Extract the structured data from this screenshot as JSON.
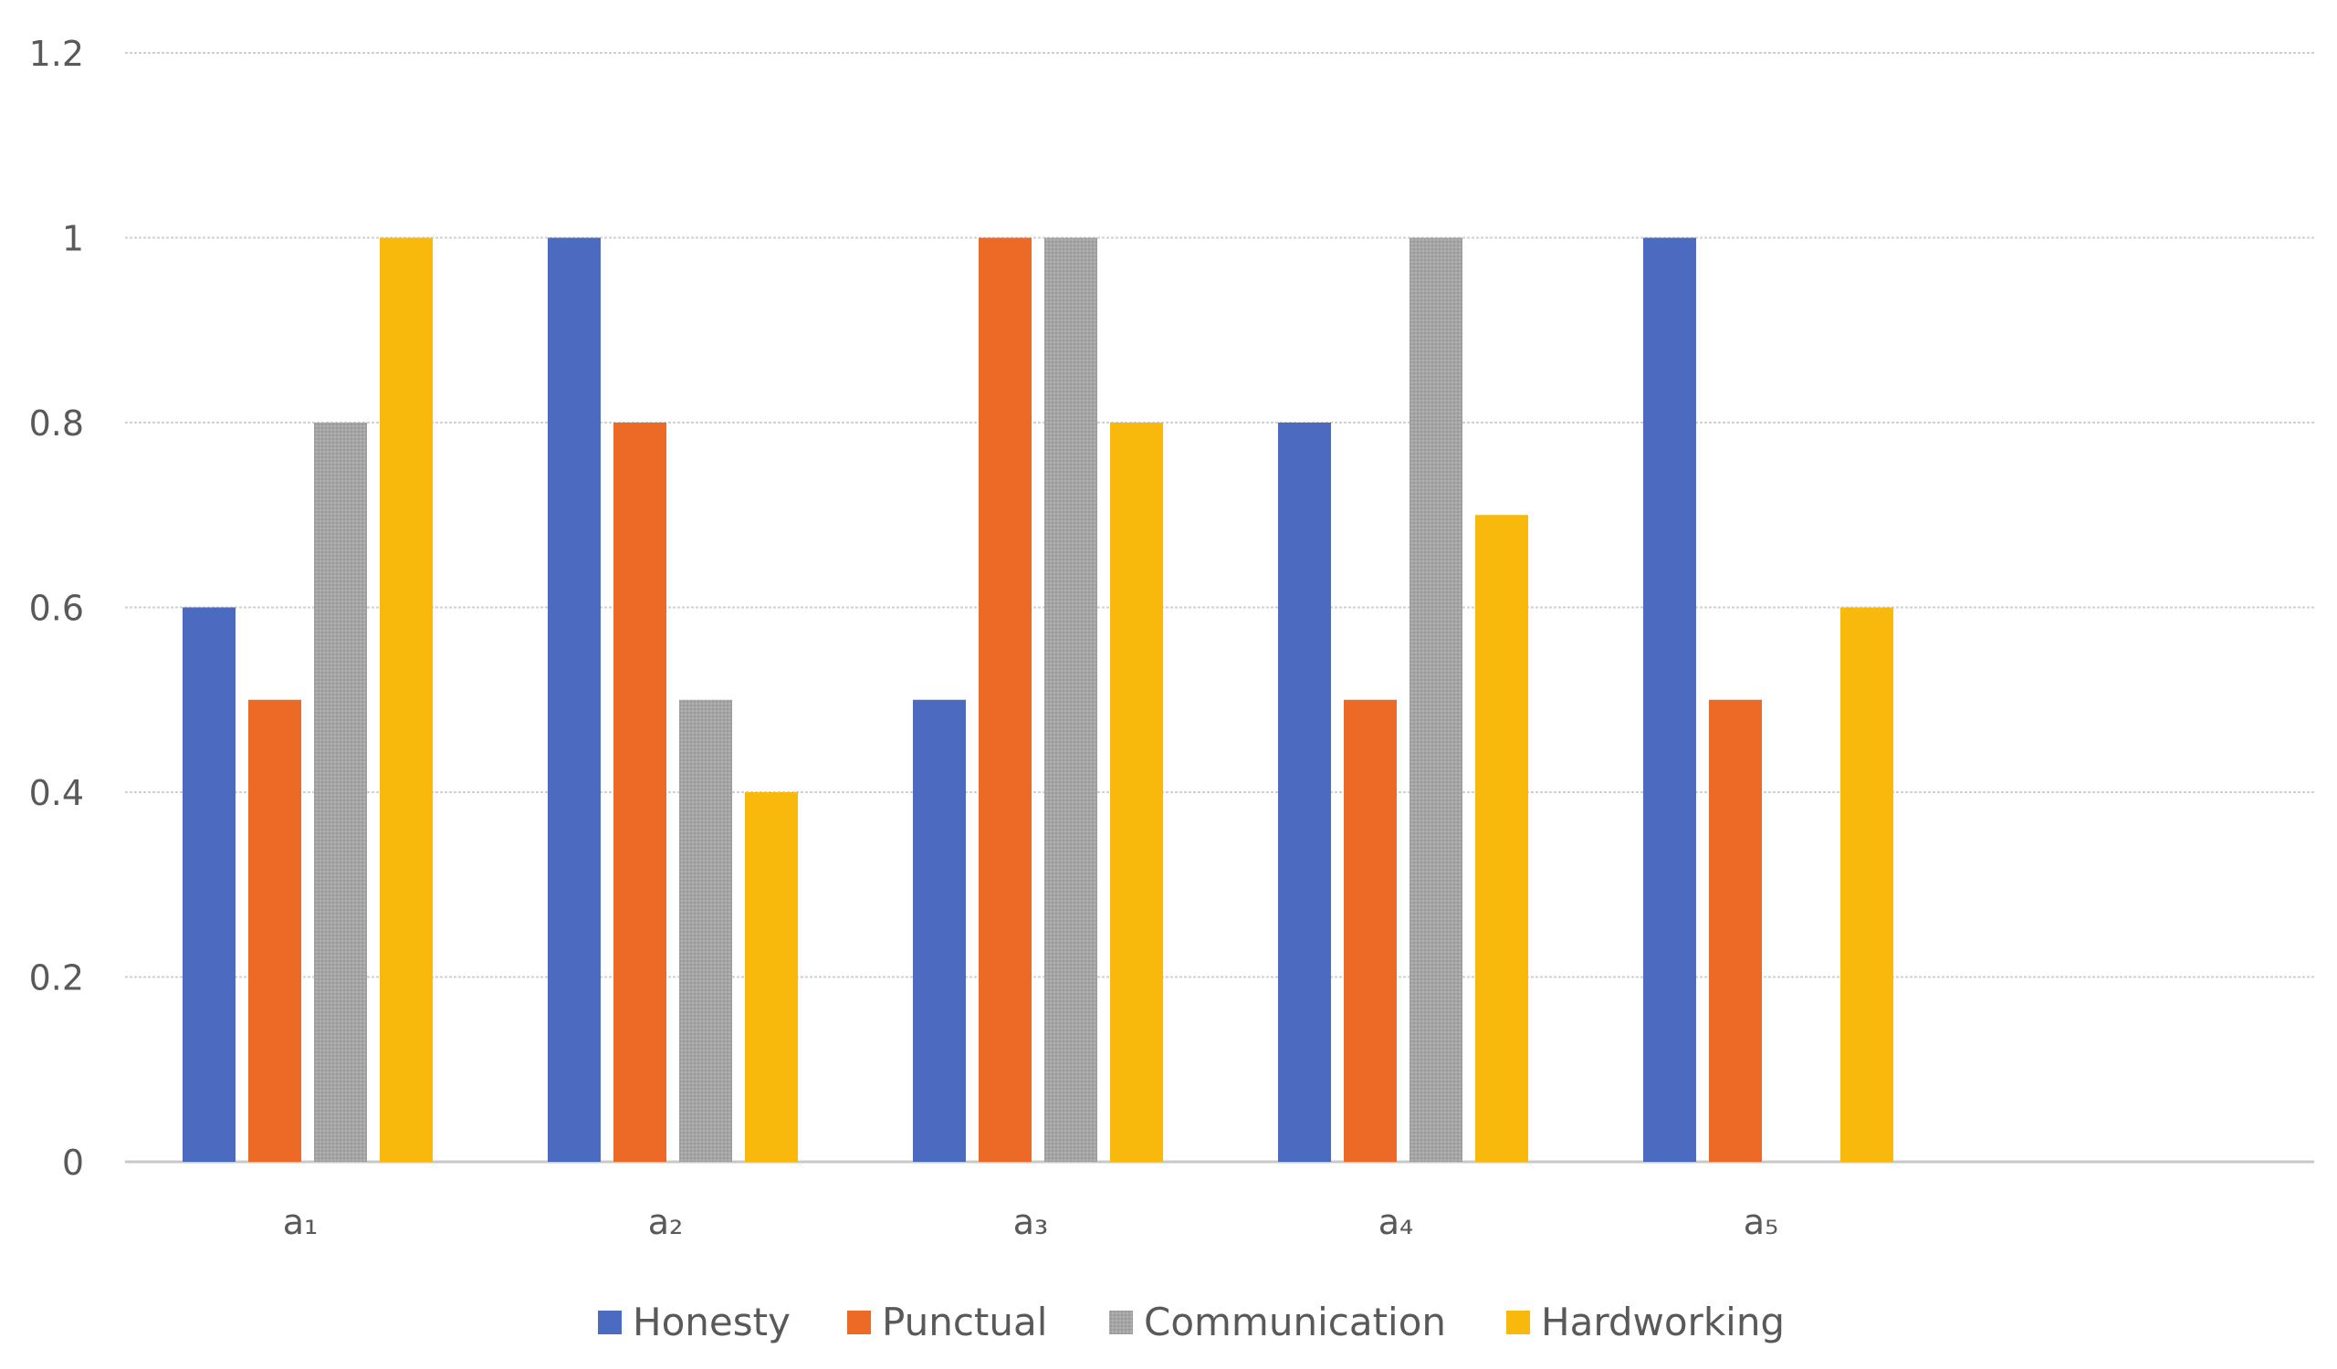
{
  "chart_data": {
    "type": "bar",
    "title": "",
    "xlabel": "",
    "ylabel": "",
    "ylim": [
      0,
      1.2
    ],
    "yticks": [
      "0",
      "0.2",
      "0.4",
      "0.6",
      "0.8",
      "1",
      "1.2"
    ],
    "ytick_values": [
      0,
      0.2,
      0.4,
      0.6,
      0.8,
      1.0,
      1.2
    ],
    "grid": true,
    "legend_position": "bottom",
    "categories": [
      "a₁",
      "a₂",
      "a₃",
      "a₄",
      "a₅"
    ],
    "series": [
      {
        "name": "Honesty",
        "color": "#4a6bbf",
        "values": [
          0.6,
          1.0,
          0.5,
          0.8,
          1.0
        ]
      },
      {
        "name": "Punctual",
        "color": "#ec6a26",
        "values": [
          0.5,
          0.8,
          1.0,
          0.5,
          0.5
        ]
      },
      {
        "name": "Communication",
        "color": "#a5a5a5",
        "values": [
          0.8,
          0.5,
          1.0,
          1.0,
          0
        ]
      },
      {
        "name": "Hardworking",
        "color": "#f8b90c",
        "values": [
          1.0,
          0.4,
          0.8,
          0.7,
          0.6
        ]
      }
    ]
  }
}
